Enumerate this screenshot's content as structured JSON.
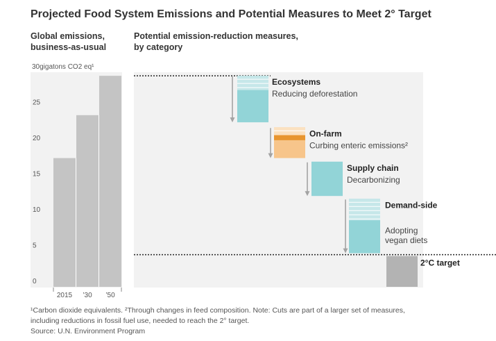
{
  "title": "Projected Food System Emissions and Potential Measures to Meet 2° Target",
  "left_heading": [
    "Global emissions,",
    "business-as-usual"
  ],
  "right_heading": [
    "Potential emission-reduction measures,",
    "by category"
  ],
  "notes": {
    "line1": "¹Carbon dioxide equivalents.  ²Through changes in feed composition.  Note: Cuts are part of a larger set of measures,",
    "line2": "including reductions in fossil fuel use, needed to reach the 2° target.",
    "source": "Source: U.N. Environment Program"
  },
  "colors": {
    "bar_gray": "#c4c4c4",
    "panel_bg": "#f2f2f2",
    "teal": "#92d4d7",
    "teal_light": "#c6e7e9",
    "orange": "#f7c58b",
    "orange_dark": "#e8952f",
    "orange_light": "#fbe1c0",
    "arrow": "#a3a3a3",
    "target_bar": "#b3b3b3"
  },
  "chart_data": [
    {
      "type": "bar",
      "title": "Global emissions, business-as-usual",
      "ylabel": "gigatons CO2 eq¹",
      "y_unit_label": "30gigatons CO2 eq¹",
      "ylim": [
        0,
        30
      ],
      "yticks": [
        0,
        5,
        10,
        15,
        20,
        25,
        30
      ],
      "categories": [
        "2015",
        "’30",
        "’50"
      ],
      "values": [
        18,
        24,
        29.5
      ]
    },
    {
      "type": "waterfall",
      "title": "Potential emission-reduction measures, by category",
      "start": 29.5,
      "ylim": [
        0,
        30
      ],
      "steps": [
        {
          "category": "Ecosystems",
          "measure": "Reducing deforestation",
          "from": 29.5,
          "to": 23.0,
          "highlight_from": 27.5,
          "shade": "teal"
        },
        {
          "category": "On-farm",
          "measure": "Curbing enteric emissions²",
          "from": 22.3,
          "to": 18.0,
          "highlight_from": 21.2,
          "highlight_to": 20.5,
          "shade": "orange"
        },
        {
          "category": "Supply chain",
          "measure": "Decarbonizing",
          "from": 17.5,
          "to": 12.7,
          "shade": "teal"
        },
        {
          "category": "Demand-side",
          "measure": "Adopting vegan diets",
          "from": 12.3,
          "to": 4.7,
          "highlight_from": 9.3,
          "shade": "teal"
        }
      ],
      "target": {
        "label": "2°C target",
        "value": 4.5
      }
    }
  ]
}
